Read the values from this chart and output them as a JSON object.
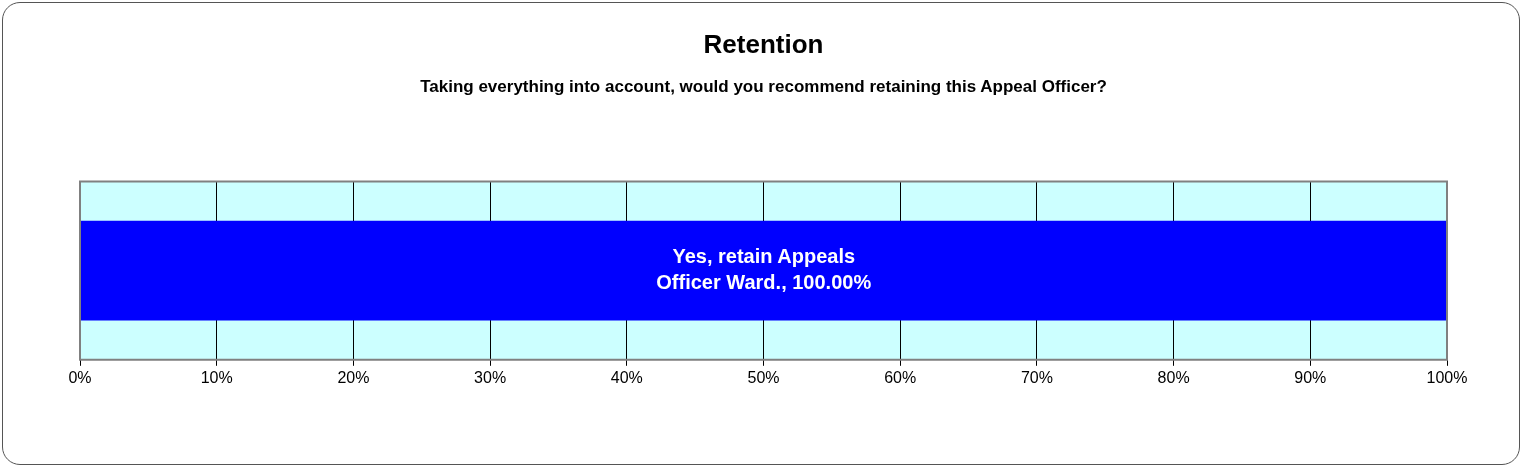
{
  "chart_data": {
    "type": "bar",
    "title": "Retention",
    "subtitle": "Taking everything into account, would you recommend retaining this Appeal Officer?",
    "orientation": "horizontal",
    "categories": [
      null
    ],
    "series": [
      {
        "color": "#0000ff",
        "values": [
          100
        ],
        "value_labels": [
          "Yes, retain Appeals Officer Ward., 100.00%"
        ]
      }
    ],
    "xlim": [
      0,
      100
    ],
    "xticks": [
      {
        "value": 0,
        "label": "0%"
      },
      {
        "value": 10,
        "label": "10%"
      },
      {
        "value": 20,
        "label": "20%"
      },
      {
        "value": 30,
        "label": "30%"
      },
      {
        "value": 40,
        "label": "40%"
      },
      {
        "value": 50,
        "label": "50%"
      },
      {
        "value": 60,
        "label": "60%"
      },
      {
        "value": 70,
        "label": "70%"
      },
      {
        "value": 80,
        "label": "80%"
      },
      {
        "value": 90,
        "label": "90%"
      },
      {
        "value": 100,
        "label": "100%"
      }
    ],
    "grid": "x",
    "bands": [
      {
        "axis": "x",
        "from": 0,
        "to": 100,
        "color": "#ccffff"
      }
    ]
  }
}
